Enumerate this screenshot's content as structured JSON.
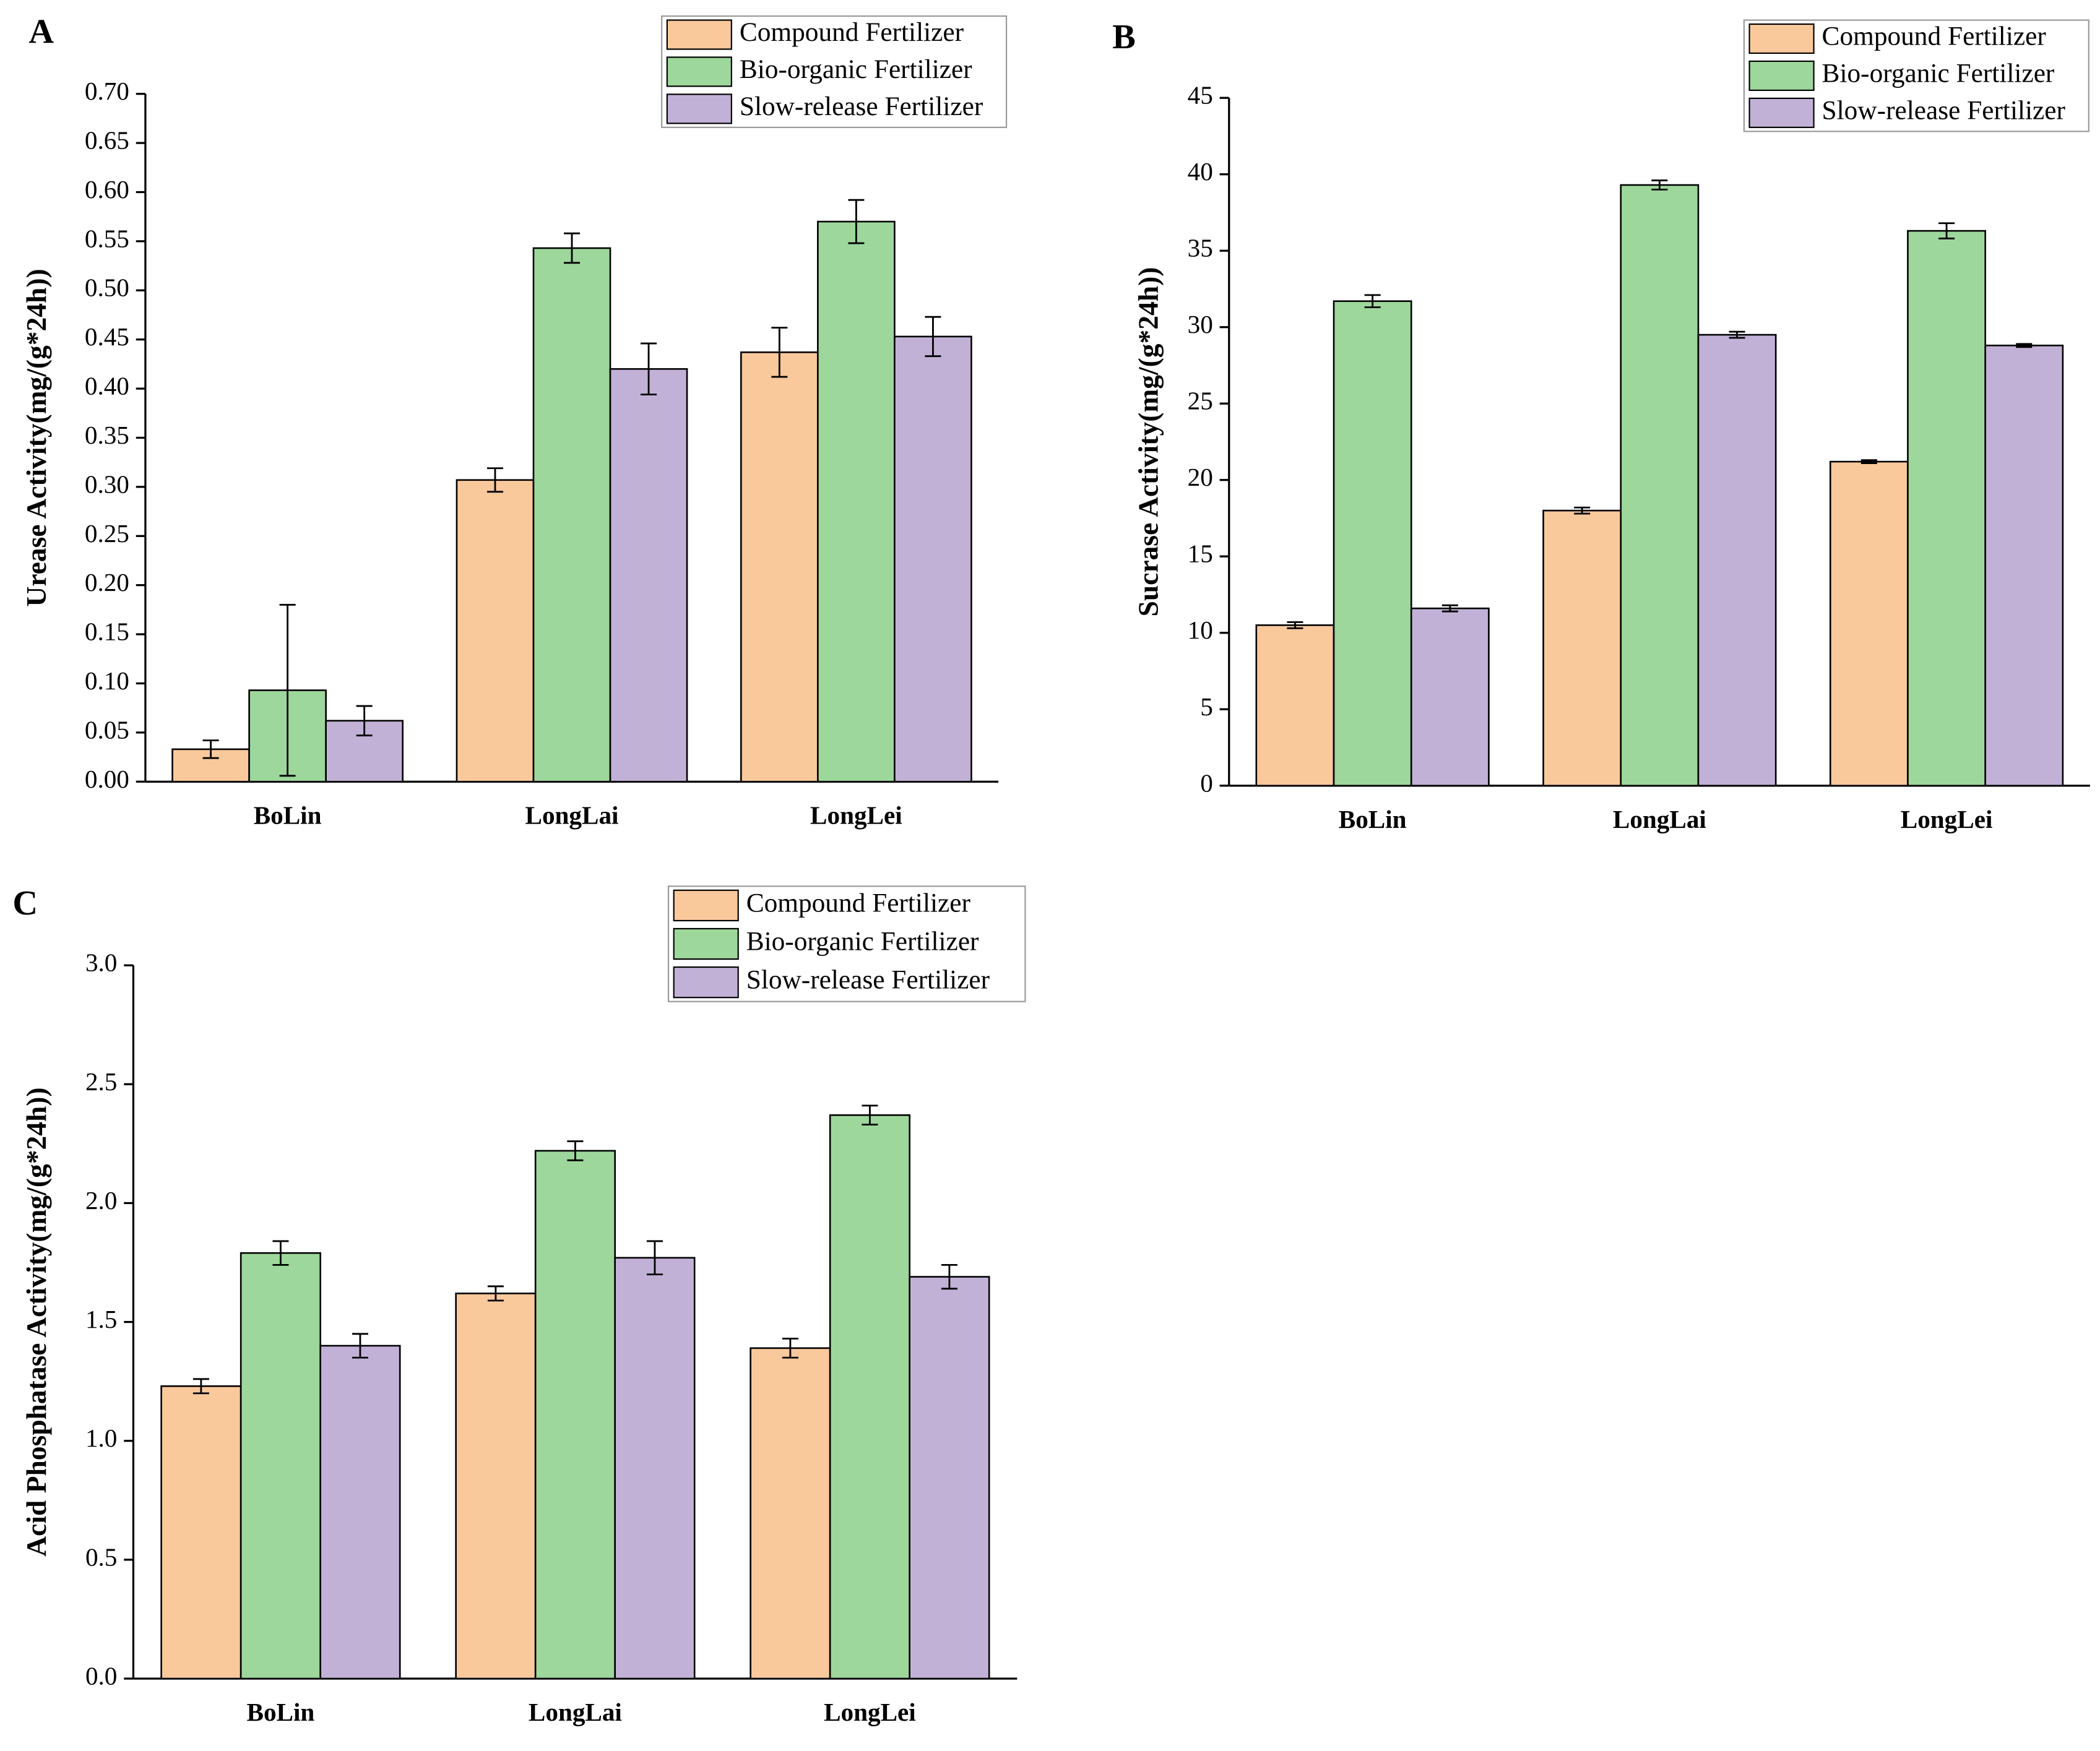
{
  "chart_data": [
    {
      "type": "bar",
      "panel": "A",
      "y_label": "Urease Activity(mg/(g*24h))",
      "categories": [
        "BoLin",
        "LongLai",
        "LongLei"
      ],
      "series": [
        {
          "name": "Compound Fertilizer",
          "color": "#f9c89b",
          "values": [
            0.033,
            0.307,
            0.437
          ],
          "errors": [
            0.009,
            0.012,
            0.025
          ]
        },
        {
          "name": "Bio-organic Fertilizer",
          "color": "#9dd79b",
          "values": [
            0.093,
            0.543,
            0.57
          ],
          "errors": [
            0.087,
            0.015,
            0.022
          ]
        },
        {
          "name": "Slow-release Fertilizer",
          "color": "#c2b1d7",
          "values": [
            0.062,
            0.42,
            0.453
          ],
          "errors": [
            0.015,
            0.026,
            0.02
          ]
        }
      ],
      "ylim": [
        0,
        0.7
      ],
      "yticks": [
        {
          "value": 0,
          "label": "0.00"
        },
        {
          "value": 0.05,
          "label": "0.05"
        },
        {
          "value": 0.1,
          "label": "0.10"
        },
        {
          "value": 0.15,
          "label": "0.15"
        },
        {
          "value": 0.2,
          "label": "0.20"
        },
        {
          "value": 0.25,
          "label": "0.25"
        },
        {
          "value": 0.3,
          "label": "0.30"
        },
        {
          "value": 0.35,
          "label": "0.35"
        },
        {
          "value": 0.4,
          "label": "0.40"
        },
        {
          "value": 0.45,
          "label": "0.45"
        },
        {
          "value": 0.5,
          "label": "0.50"
        },
        {
          "value": 0.55,
          "label": "0.55"
        },
        {
          "value": 0.6,
          "label": "0.60"
        },
        {
          "value": 0.65,
          "label": "0.65"
        },
        {
          "value": 0.7,
          "label": "0.70"
        }
      ],
      "legend": "top-right"
    },
    {
      "type": "bar",
      "panel": "B",
      "y_label": "Sucrase Activity(mg/(g*24h))",
      "categories": [
        "BoLin",
        "LongLai",
        "LongLei"
      ],
      "series": [
        {
          "name": "Compound Fertilizer",
          "color": "#f9c89b",
          "values": [
            10.5,
            18.0,
            21.2
          ],
          "errors": [
            0.2,
            0.2,
            0.1
          ]
        },
        {
          "name": "Bio-organic Fertilizer",
          "color": "#9dd79b",
          "values": [
            31.7,
            39.3,
            36.3
          ],
          "errors": [
            0.4,
            0.3,
            0.5
          ]
        },
        {
          "name": "Slow-release Fertilizer",
          "color": "#c2b1d7",
          "values": [
            11.6,
            29.5,
            28.8
          ],
          "errors": [
            0.2,
            0.2,
            0.1
          ]
        }
      ],
      "ylim": [
        0,
        45
      ],
      "yticks": [
        0,
        5,
        10,
        15,
        20,
        25,
        30,
        35,
        40,
        45
      ],
      "legend": "top-right"
    },
    {
      "type": "bar",
      "panel": "C",
      "y_label": "Acid Phosphatase Activity(mg/(g*24h))",
      "categories": [
        "BoLin",
        "LongLai",
        "LongLei"
      ],
      "series": [
        {
          "name": "Compound Fertilizer",
          "color": "#f9c89b",
          "values": [
            1.23,
            1.62,
            1.39
          ],
          "errors": [
            0.03,
            0.03,
            0.04
          ]
        },
        {
          "name": "Bio-organic Fertilizer",
          "color": "#9dd79b",
          "values": [
            1.79,
            2.22,
            2.37
          ],
          "errors": [
            0.05,
            0.04,
            0.04
          ]
        },
        {
          "name": "Slow-release Fertilizer",
          "color": "#c2b1d7",
          "values": [
            1.4,
            1.77,
            1.69
          ],
          "errors": [
            0.05,
            0.07,
            0.05
          ]
        }
      ],
      "ylim": [
        0,
        3
      ],
      "yticks": [
        {
          "value": 0,
          "label": "0.0"
        },
        0.5,
        {
          "value": 1,
          "label": "1.0"
        },
        1.5,
        {
          "value": 2,
          "label": "2.0"
        },
        2.5,
        {
          "value": 3,
          "label": "3.0"
        }
      ],
      "legend": "top-right"
    }
  ]
}
